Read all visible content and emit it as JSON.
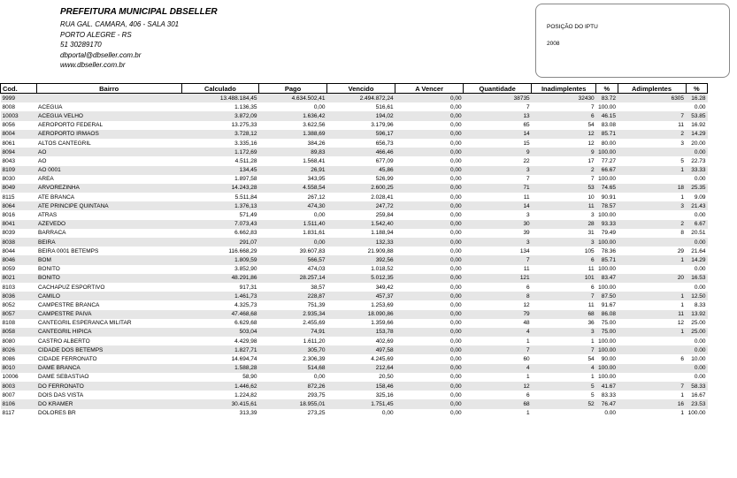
{
  "header": {
    "org": "PREFEITURA MUNICIPAL DBSELLER",
    "lines": [
      "RUA GAL. CAMARA, 406 - SALA 301",
      "PORTO ALEGRE - RS",
      "51 30289170",
      "dbportal@dbseller.com.br",
      "www.dbseller.com.br"
    ]
  },
  "box": {
    "title": "POSIÇÃO DO IPTU",
    "year": "2008"
  },
  "columns": [
    "Cod.",
    "Bairro",
    "Calculado",
    "Pago",
    "Vencido",
    "A Vencer",
    "Quantidade",
    "Inadimplentes",
    "%",
    "Adimplentes",
    "%"
  ],
  "rows": [
    [
      "9999",
      "",
      "13.488.184,45",
      "4.634.502,41",
      "2.494.872,24",
      "0,00",
      "38735",
      "32430",
      "83.72",
      "6305",
      "16.28"
    ],
    [
      "8008",
      "ACEGUA",
      "1.136,35",
      "0,00",
      "516,61",
      "0,00",
      "7",
      "7",
      "100.00",
      "",
      "0.00"
    ],
    [
      "10003",
      "ACEGUA VELHO",
      "3.872,09",
      "1.636,42",
      "194,02",
      "0,00",
      "13",
      "6",
      "46.15",
      "7",
      "53.85"
    ],
    [
      "8056",
      "AEROPORTO FEDERAL",
      "13.275,33",
      "3.622,56",
      "3.179,96",
      "0,00",
      "65",
      "54",
      "83.08",
      "11",
      "16.92"
    ],
    [
      "8004",
      "AEROPORTO IRMAOS",
      "3.728,12",
      "1.388,69",
      "596,17",
      "0,00",
      "14",
      "12",
      "85.71",
      "2",
      "14.29"
    ],
    [
      "8061",
      "ALTOS CANTEGRIL",
      "3.335,16",
      "384,26",
      "656,73",
      "0,00",
      "15",
      "12",
      "80.00",
      "3",
      "20.00"
    ],
    [
      "8094",
      "AO",
      "1.172,69",
      "89,83",
      "466,46",
      "0,00",
      "9",
      "9",
      "100.00",
      "",
      "0.00"
    ],
    [
      "8043",
      "AO",
      "4.511,28",
      "1.568,41",
      "677,09",
      "0,00",
      "22",
      "17",
      "77.27",
      "5",
      "22.73"
    ],
    [
      "8109",
      "AO 0001",
      "134,45",
      "26,91",
      "45,86",
      "0,00",
      "3",
      "2",
      "66.67",
      "1",
      "33.33"
    ],
    [
      "8030",
      "AREA",
      "1.897,58",
      "343,95",
      "526,99",
      "0,00",
      "7",
      "7",
      "100.00",
      "",
      "0.00"
    ],
    [
      "8049",
      "ARVOREZINHA",
      "14.243,28",
      "4.558,54",
      "2.600,25",
      "0,00",
      "71",
      "53",
      "74.65",
      "18",
      "25.35"
    ],
    [
      "8115",
      "ATE BRANCA",
      "5.511,84",
      "267,12",
      "2.028,41",
      "0,00",
      "11",
      "10",
      "90.91",
      "1",
      "9.09"
    ],
    [
      "8064",
      "ATE PRINCIPE QUINTANA",
      "1.376,13",
      "474,30",
      "247,72",
      "0,00",
      "14",
      "11",
      "78.57",
      "3",
      "21.43"
    ],
    [
      "8016",
      "ATRAS",
      "571,49",
      "0,00",
      "259,84",
      "0,00",
      "3",
      "3",
      "100.00",
      "",
      "0.00"
    ],
    [
      "8041",
      "AZEVEDO",
      "7.073,43",
      "1.511,40",
      "1.542,40",
      "0,00",
      "30",
      "28",
      "93.33",
      "2",
      "6.67"
    ],
    [
      "8039",
      "BARRACA",
      "6.662,83",
      "1.831,61",
      "1.188,94",
      "0,00",
      "39",
      "31",
      "79.49",
      "8",
      "20.51"
    ],
    [
      "8038",
      "BEIRA",
      "291,07",
      "0,00",
      "132,33",
      "0,00",
      "3",
      "3",
      "100.00",
      "",
      "0.00"
    ],
    [
      "8044",
      "BEIRA 0001 BETEMPS",
      "116.668,29",
      "39.607,83",
      "21.909,88",
      "0,00",
      "134",
      "105",
      "78.36",
      "29",
      "21.64"
    ],
    [
      "8046",
      "BOM",
      "1.809,59",
      "566,57",
      "392,56",
      "0,00",
      "7",
      "6",
      "85.71",
      "1",
      "14.29"
    ],
    [
      "8059",
      "BONITO",
      "3.852,90",
      "474,03",
      "1.018,52",
      "0,00",
      "11",
      "11",
      "100.00",
      "",
      "0.00"
    ],
    [
      "8021",
      "BONITO",
      "48.291,86",
      "28.257,14",
      "5.012,35",
      "0,00",
      "121",
      "101",
      "83.47",
      "20",
      "16.53"
    ],
    [
      "8103",
      "CACHAPUZ ESPORTIVO",
      "917,31",
      "38,57",
      "349,42",
      "0,00",
      "6",
      "6",
      "100.00",
      "",
      "0.00"
    ],
    [
      "8036",
      "CAMILO",
      "1.461,73",
      "228,87",
      "457,37",
      "0,00",
      "8",
      "7",
      "87.50",
      "1",
      "12.50"
    ],
    [
      "8052",
      "CAMPESTRE BRANCA",
      "4.325,73",
      "751,39",
      "1.253,69",
      "0,00",
      "12",
      "11",
      "91.67",
      "1",
      "8.33"
    ],
    [
      "8057",
      "CAMPESTRE PAIVA",
      "47.468,68",
      "2.935,34",
      "18.090,86",
      "0,00",
      "79",
      "68",
      "86.08",
      "11",
      "13.92"
    ],
    [
      "8108",
      "CANTEGRIL ESPERANCA MILITAR",
      "6.629,68",
      "2.455,69",
      "1.359,66",
      "0,00",
      "48",
      "36",
      "75.00",
      "12",
      "25.00"
    ],
    [
      "8058",
      "CANTEGRIL HIPICA",
      "503,04",
      "74,91",
      "153,78",
      "0,00",
      "4",
      "3",
      "75.00",
      "1",
      "25.00"
    ],
    [
      "8080",
      "CASTRO ALBERTO",
      "4.429,98",
      "1.611,20",
      "402,69",
      "0,00",
      "1",
      "1",
      "100.00",
      "",
      "0.00"
    ],
    [
      "8026",
      "CIDADE DOS BETEMPS",
      "1.827,71",
      "305,70",
      "497,58",
      "0,00",
      "7",
      "7",
      "100.00",
      "",
      "0.00"
    ],
    [
      "8086",
      "CIDADE FERRONATO",
      "14.694,74",
      "2.306,39",
      "4.245,69",
      "0,00",
      "60",
      "54",
      "90.00",
      "6",
      "10.00"
    ],
    [
      "8010",
      "DAME BRANCA",
      "1.588,28",
      "514,68",
      "212,64",
      "0,00",
      "4",
      "4",
      "100.00",
      "",
      "0.00"
    ],
    [
      "10006",
      "DAME SEBASTIAO",
      "58,90",
      "0,00",
      "20,50",
      "0,00",
      "1",
      "1",
      "100.00",
      "",
      "0.00"
    ],
    [
      "8003",
      "DO FERRONATO",
      "1.446,62",
      "872,26",
      "158,46",
      "0,00",
      "12",
      "5",
      "41.67",
      "7",
      "58.33"
    ],
    [
      "8007",
      "DOIS DAS VISTA",
      "1.224,82",
      "293,75",
      "325,16",
      "0,00",
      "6",
      "5",
      "83.33",
      "1",
      "16.67"
    ],
    [
      "8106",
      "DO KRAMER",
      "30.415,61",
      "18.955,01",
      "1.751,45",
      "0,00",
      "68",
      "52",
      "76.47",
      "16",
      "23.53"
    ],
    [
      "8117",
      "DOLORES BR",
      "313,39",
      "273,25",
      "0,00",
      "0,00",
      "1",
      "",
      "0.00",
      "1",
      "100.00"
    ]
  ]
}
